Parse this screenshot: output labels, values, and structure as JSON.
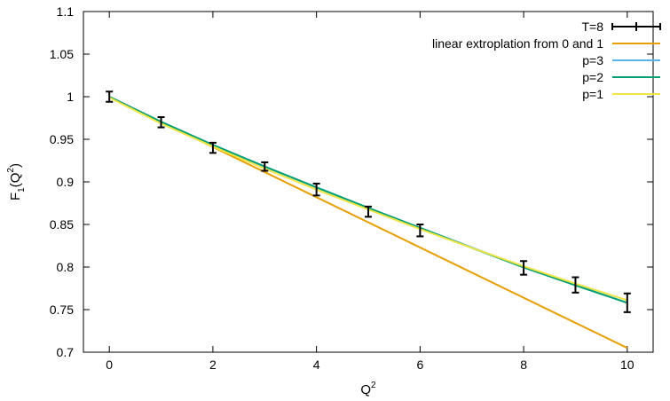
{
  "chart_data": {
    "type": "line",
    "title": "",
    "xlabel": "Q",
    "xlabel_sup": "2",
    "ylabel_main": "F",
    "ylabel_sub": "1",
    "ylabel_open": "(Q",
    "ylabel_sup": "2",
    "ylabel_close": ")",
    "xlim": [
      -0.5,
      10.5
    ],
    "ylim": [
      0.7,
      1.1
    ],
    "x_ticks": [
      0,
      2,
      4,
      6,
      8,
      10
    ],
    "y_ticks": [
      0.7,
      0.75,
      0.8,
      0.85,
      0.9,
      0.95,
      1,
      1.05,
      1.1
    ],
    "x_tick_labels": [
      "0",
      "2",
      "4",
      "6",
      "8",
      "10"
    ],
    "y_tick_labels": [
      "0.7",
      "0.75",
      "0.8",
      "0.85",
      "0.9",
      "0.95",
      "1",
      "1.05",
      "1.1"
    ],
    "grid": false,
    "legend_position": "top-right",
    "series": [
      {
        "name": "T=8",
        "kind": "errorbar",
        "color": "#000000",
        "x": [
          0,
          1,
          2,
          3,
          4,
          5,
          6,
          8,
          9,
          10
        ],
        "y": [
          1.0,
          0.97,
          0.94,
          0.918,
          0.891,
          0.865,
          0.843,
          0.799,
          0.779,
          0.758
        ],
        "err": [
          0.006,
          0.006,
          0.006,
          0.005,
          0.007,
          0.006,
          0.007,
          0.008,
          0.009,
          0.011
        ]
      },
      {
        "name": "linear extroplation from 0 and 1",
        "kind": "line",
        "color": "#e69f00",
        "x": [
          0,
          10
        ],
        "y": [
          1.0,
          0.705
        ]
      },
      {
        "name": "p=3",
        "kind": "line",
        "color": "#56b4e9",
        "x": [
          0,
          1,
          2,
          3,
          4,
          5,
          6,
          7,
          8,
          9,
          10
        ],
        "y": [
          1.0,
          0.9705,
          0.9435,
          0.918,
          0.8935,
          0.8695,
          0.846,
          0.823,
          0.8,
          0.779,
          0.758
        ]
      },
      {
        "name": "p=2",
        "kind": "line",
        "color": "#009e73",
        "x": [
          0,
          1,
          2,
          3,
          4,
          5,
          6,
          7,
          8,
          9,
          10
        ],
        "y": [
          1.0,
          0.9705,
          0.9435,
          0.918,
          0.8935,
          0.8695,
          0.846,
          0.8225,
          0.7995,
          0.7785,
          0.758
        ]
      },
      {
        "name": "p=1",
        "kind": "line",
        "color": "#f0e442",
        "x": [
          0,
          1,
          2,
          3,
          4,
          5,
          6,
          7,
          8,
          9,
          10
        ],
        "y": [
          0.999,
          0.9685,
          0.9415,
          0.9155,
          0.891,
          0.8675,
          0.8445,
          0.8225,
          0.801,
          0.7805,
          0.761
        ]
      }
    ]
  }
}
